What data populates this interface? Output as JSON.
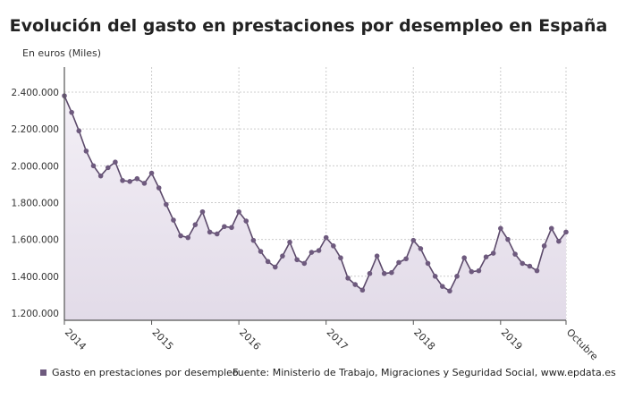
{
  "chart_data": {
    "type": "area",
    "title": "Evolución del gasto en prestaciones por desempleo en España",
    "ylabel": "En euros (Miles)",
    "source": "Fuente: Ministerio de Trabajo, Migraciones y Seguridad Social, www.epdata.es",
    "series": [
      {
        "name": "Gasto en prestaciones por desempleo",
        "color": "#6e5a7e",
        "values": [
          2380000,
          2290000,
          2190000,
          2080000,
          2000000,
          1945000,
          1990000,
          2020000,
          1920000,
          1915000,
          1930000,
          1905000,
          1960000,
          1880000,
          1790000,
          1705000,
          1620000,
          1610000,
          1680000,
          1750000,
          1640000,
          1630000,
          1670000,
          1665000,
          1750000,
          1700000,
          1595000,
          1535000,
          1480000,
          1450000,
          1510000,
          1585000,
          1490000,
          1470000,
          1530000,
          1540000,
          1610000,
          1565000,
          1500000,
          1390000,
          1355000,
          1325000,
          1415000,
          1510000,
          1415000,
          1420000,
          1475000,
          1495000,
          1595000,
          1550000,
          1470000,
          1400000,
          1345000,
          1320000,
          1400000,
          1500000,
          1425000,
          1430000,
          1505000,
          1525000,
          1660000,
          1600000,
          1520000,
          1470000,
          1455000,
          1430000,
          1565000,
          1660000,
          1590000,
          1640000
        ]
      }
    ],
    "x_start": "2014-01",
    "x_end": "2019-10",
    "x_ticks": [
      "2014",
      "2015",
      "2016",
      "2017",
      "2018",
      "2019",
      "Octubre"
    ],
    "y_ticks": [
      1200000,
      1400000,
      1600000,
      1800000,
      2000000,
      2200000,
      2400000
    ],
    "y_tick_labels": [
      "1.200.000",
      "1.400.000",
      "1.600.000",
      "1.800.000",
      "2.000.000",
      "2.200.000",
      "2.400.000"
    ],
    "ylim": [
      1161000,
      2536000
    ],
    "grid": true,
    "legend": "bottom-left"
  }
}
